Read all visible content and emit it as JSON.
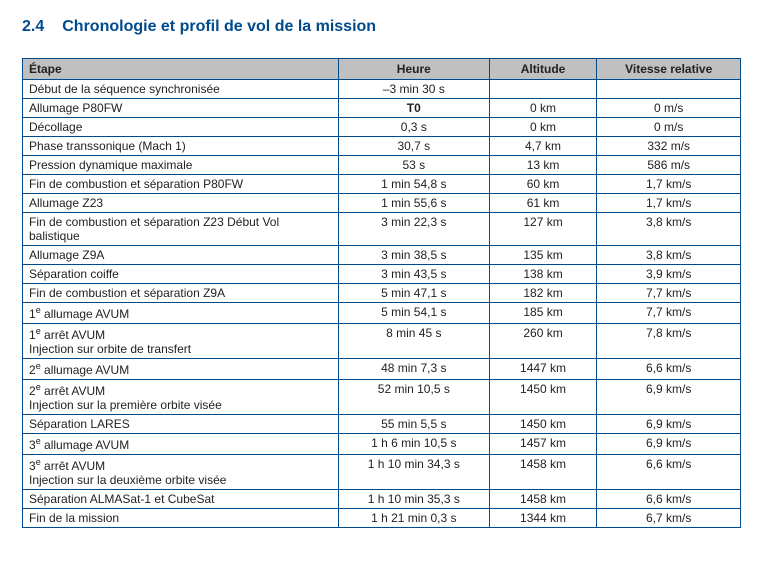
{
  "title_prefix": "2.4",
  "title_text": "Chronologie et profil de vol de la mission",
  "columns": [
    "Étape",
    "Heure",
    "Altitude",
    "Vitesse relative"
  ],
  "styling": {
    "title_color": "#004b8d",
    "title_fontsize": 16,
    "border_color": "#004b8d",
    "header_background": "#c0c0c0",
    "body_fontsize": 12,
    "font_family": "Verdana"
  },
  "rows": [
    {
      "etape": "Début de la séquence synchronisée",
      "heure": "–3 min 30 s",
      "altitude": "",
      "vitesse": ""
    },
    {
      "etape": "Allumage P80FW",
      "heure": "T0",
      "heure_bold": true,
      "altitude": "0 km",
      "vitesse": "0 m/s"
    },
    {
      "etape": "Décollage",
      "heure": "0,3 s",
      "altitude": "0 km",
      "vitesse": "0 m/s"
    },
    {
      "etape": "Phase transsonique (Mach 1)",
      "heure": "30,7 s",
      "altitude": "4,7 km",
      "vitesse": "332 m/s"
    },
    {
      "etape": "Pression dynamique maximale",
      "heure": "53 s",
      "altitude": "13 km",
      "vitesse": "586 m/s"
    },
    {
      "etape": "Fin de combustion et séparation P80FW",
      "etape_justify": true,
      "heure": "1 min 54,8 s",
      "altitude": "60 km",
      "vitesse": "1,7 km/s"
    },
    {
      "etape": "Allumage Z23",
      "heure": "1 min 55,6 s",
      "altitude": "61 km",
      "vitesse": "1,7 km/s"
    },
    {
      "etape": "Fin de combustion et séparation Z23 Début Vol balistique",
      "heure": "3 min 22,3 s",
      "altitude": "127 km",
      "vitesse": "3,8 km/s"
    },
    {
      "etape": "Allumage Z9A",
      "heure": "3 min 38,5 s",
      "altitude": "135 km",
      "vitesse": "3,8 km/s"
    },
    {
      "etape": "Séparation coiffe",
      "heure": "3 min 43,5 s",
      "altitude": "138 km",
      "vitesse": "3,9 km/s"
    },
    {
      "etape": "Fin de combustion et séparation Z9A",
      "heure": "5 min 47,1 s",
      "altitude": "182 km",
      "vitesse": "7,7 km/s"
    },
    {
      "etape": "1<sup>e</sup> allumage AVUM",
      "html": true,
      "heure": "5 min 54,1 s",
      "altitude": "185 km",
      "vitesse": "7,7 km/s"
    },
    {
      "etape": "1<sup>e</sup> arrêt AVUM<br>Injection sur orbite de transfert",
      "html": true,
      "heure": "8 min 45 s",
      "altitude": "260 km",
      "vitesse": "7,8 km/s"
    },
    {
      "etape": "2<sup>e</sup> allumage AVUM",
      "html": true,
      "heure": "48 min 7,3 s",
      "altitude": "1447 km",
      "vitesse": "6,6 km/s"
    },
    {
      "etape": "2<sup>e</sup> arrêt AVUM<br>Injection sur la première orbite visée",
      "html": true,
      "heure": "52 min 10,5 s",
      "altitude": "1450 km",
      "vitesse": "6,9 km/s"
    },
    {
      "etape": "Séparation LARES",
      "heure": "55 min 5,5 s",
      "altitude": "1450 km",
      "vitesse": "6,9 km/s"
    },
    {
      "etape": "3<sup>e</sup> allumage AVUM",
      "html": true,
      "heure": "1 h 6 min 10,5 s",
      "altitude": "1457 km",
      "vitesse": "6,9 km/s"
    },
    {
      "etape": "3<sup>e</sup> arrêt AVUM<br>Injection sur la deuxième orbite visée",
      "html": true,
      "heure": "1 h 10 min 34,3 s",
      "altitude": "1458 km",
      "vitesse": "6,6 km/s"
    },
    {
      "etape": "Séparation ALMASat-1 et CubeSat",
      "heure": "1 h 10 min 35,3 s",
      "altitude": "1458 km",
      "vitesse": "6,6 km/s"
    },
    {
      "etape": "Fin de la mission",
      "heure": "1 h 21 min 0,3 s",
      "altitude": "1344 km",
      "vitesse": "6,7 km/s"
    }
  ]
}
